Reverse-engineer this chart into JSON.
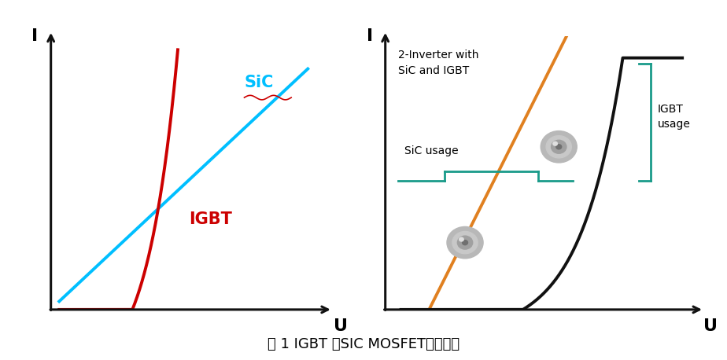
{
  "fig_width": 9.24,
  "fig_height": 4.58,
  "bg_color": "#ffffff",
  "caption": "图 1 IGBT 和SIC MOSFET导通特性",
  "caption_fontsize": 13,
  "left_chart": {
    "sic_color": "#00bfff",
    "igbt_color": "#cc0000",
    "axis_color": "#111111",
    "sic_label": "SiC",
    "igbt_label": "IGBT",
    "xlabel": "U",
    "ylabel": "I"
  },
  "right_chart": {
    "orange_color": "#e08020",
    "black_color": "#111111",
    "teal_color": "#1a9b8a",
    "axis_color": "#111111",
    "label_inverter": "2-Inverter with\nSiC and IGBT",
    "label_sic_usage": "SiC usage",
    "label_igbt_usage": "IGBT\nusage",
    "xlabel": "U",
    "ylabel": "I"
  }
}
